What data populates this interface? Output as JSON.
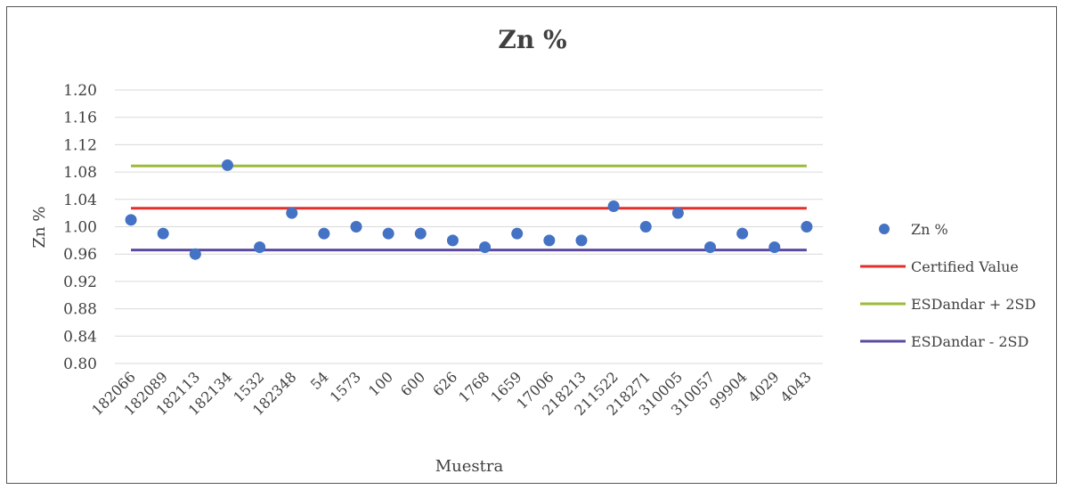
{
  "chart_data": {
    "type": "scatter",
    "title": "Zn %",
    "xlabel": "Muestra",
    "ylabel": "Zn %",
    "ylim": [
      0.8,
      1.2
    ],
    "yticks": [
      "0.80",
      "0.84",
      "0.88",
      "0.92",
      "0.96",
      "1.00",
      "1.04",
      "1.08",
      "1.12",
      "1.16",
      "1.20"
    ],
    "grid": true,
    "legend_position": "right",
    "categories": [
      "182066",
      "182089",
      "182113",
      "182134",
      "1532",
      "182348",
      "54",
      "1573",
      "100",
      "600",
      "626",
      "1768",
      "1659",
      "17006",
      "218213",
      "211522",
      "218271",
      "310005",
      "310057",
      "99904",
      "4029",
      "4043"
    ],
    "series": [
      {
        "name": "Zn %",
        "kind": "points",
        "color": "#4472C4",
        "values": [
          1.01,
          0.99,
          0.96,
          1.09,
          0.97,
          1.02,
          0.99,
          1.0,
          0.99,
          0.99,
          0.98,
          0.97,
          0.99,
          0.98,
          0.98,
          1.03,
          1.0,
          1.02,
          0.97,
          0.99,
          0.97,
          1.0
        ]
      },
      {
        "name": "Certified Value",
        "kind": "line",
        "color": "#E0302C",
        "value": 1.027
      },
      {
        "name": "ESDandar + 2SD",
        "kind": "line",
        "color": "#9BBB3B",
        "value": 1.089
      },
      {
        "name": "ESDandar - 2SD",
        "kind": "line",
        "color": "#5B4AA0",
        "value": 0.966
      }
    ]
  }
}
